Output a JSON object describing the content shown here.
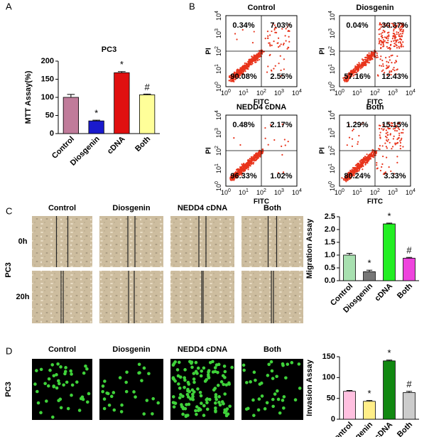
{
  "chart_data": [
    {
      "type": "bar",
      "title": "PC3",
      "ylabel": "MTT Assay(%)",
      "categories": [
        "Control",
        "Diosgenin",
        "cDNA",
        "Both"
      ],
      "values": [
        100,
        35,
        168,
        107
      ],
      "errors": [
        8,
        2,
        3,
        2
      ],
      "annotations": [
        null,
        "*",
        "*",
        "#"
      ],
      "colors": [
        "#c07b9a",
        "#1a1acc",
        "#e01010",
        "#ffff99"
      ],
      "ylim": [
        0,
        200
      ],
      "yticks": [
        0,
        50,
        100,
        150,
        200
      ]
    },
    {
      "type": "bar",
      "ylabel": "Migration Assay",
      "categories": [
        "Control",
        "Diosgenin",
        "cDNA",
        "Both"
      ],
      "values": [
        1.0,
        0.35,
        2.22,
        0.88
      ],
      "errors": [
        0.07,
        0.06,
        0.03,
        0.03
      ],
      "annotations": [
        null,
        "*",
        "*",
        "#"
      ],
      "colors": [
        "#a8e0b0",
        "#777777",
        "#22ee22",
        "#ee44dd"
      ],
      "ylim": [
        0,
        2.5
      ],
      "yticks": [
        {
          "value": 0,
          "label": "0.0"
        },
        0.5,
        {
          "value": 1,
          "label": "1.0"
        },
        1.5,
        {
          "value": 2,
          "label": "2.0"
        },
        2.5
      ]
    },
    {
      "type": "bar",
      "ylabel": "Invasion Assay",
      "categories": [
        "Control",
        "Diosgenin",
        "cDNA",
        "Both"
      ],
      "values": [
        67,
        43,
        140,
        64
      ],
      "errors": [
        2,
        2,
        2,
        3
      ],
      "annotations": [
        null,
        "*",
        "*",
        "#"
      ],
      "colors": [
        "#ffc0e0",
        "#ffee88",
        "#118811",
        "#cccccc"
      ],
      "ylim": [
        0,
        150
      ],
      "yticks": [
        0,
        50,
        100,
        150
      ]
    }
  ],
  "figure": {
    "panel_labels": [
      "A",
      "B",
      "C",
      "D"
    ],
    "flow": {
      "y_label": "PI",
      "x_label": "FITC",
      "tick_base": "10",
      "tick_exponents": [
        "0",
        "1",
        "2",
        "3",
        "4"
      ],
      "plots": [
        {
          "title": "Control",
          "quadrants": [
            "0.34%",
            "7.03%",
            "90.08%",
            "2.55%"
          ]
        },
        {
          "title": "Diosgenin",
          "quadrants": [
            "0.04%",
            "30.37%",
            "57.16%",
            "12.43%"
          ]
        },
        {
          "title": "NEDD4 cDNA",
          "quadrants": [
            "0.48%",
            "2.17%",
            "96.33%",
            "1.02%"
          ]
        },
        {
          "title": "Both",
          "quadrants": [
            "1.29%",
            "15.15%",
            "80.24%",
            "3.33%"
          ]
        }
      ]
    },
    "migration": {
      "cell_line": "PC3",
      "columns": [
        "Control",
        "Diosgenin",
        "NEDD4 cDNA",
        "Both"
      ],
      "rows": [
        "0h",
        "20h"
      ]
    },
    "invasion": {
      "cell_line": "PC3",
      "columns": [
        "Control",
        "Diosgenin",
        "NEDD4 cDNA",
        "Both"
      ]
    }
  }
}
